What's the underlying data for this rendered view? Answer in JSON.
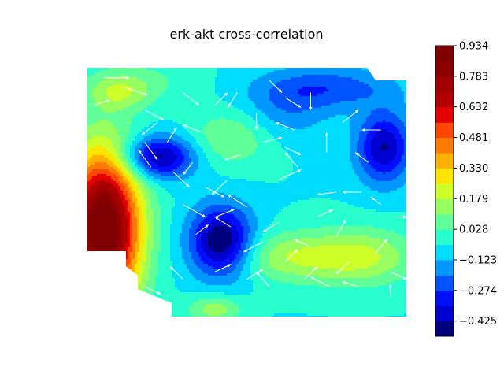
{
  "chart_data": {
    "type": "heatmap",
    "subtype": "filled-contour with quiver arrows",
    "title": "erk-akt cross-correlation",
    "colormap": "jet",
    "colorbar": {
      "vmin": -0.5,
      "vmax": 0.934,
      "levels": [
        -0.5,
        -0.425,
        -0.349,
        -0.274,
        -0.199,
        -0.123,
        -0.048,
        0.028,
        0.103,
        0.179,
        0.254,
        0.33,
        0.405,
        0.481,
        0.556,
        0.632,
        0.707,
        0.783,
        0.858,
        0.934
      ],
      "tick_labels": [
        "0.934",
        "0.783",
        "0.632",
        "0.481",
        "0.330",
        "0.179",
        "0.028",
        "−0.123",
        "−0.274",
        "−0.425"
      ],
      "tick_values": [
        0.934,
        0.783,
        0.632,
        0.481,
        0.33,
        0.179,
        0.028,
        -0.123,
        -0.274,
        -0.425
      ],
      "band_colors": [
        "#00007f",
        "#0000d0",
        "#0010ff",
        "#0054ff",
        "#0098ff",
        "#00dcfe",
        "#29ffce",
        "#60ff97",
        "#97ff60",
        "#ceff29",
        "#fee500",
        "#ffb000",
        "#ff7a00",
        "#ff4600",
        "#e40000",
        "#b00000",
        "#a00000",
        "#8a0000",
        "#7f0000"
      ]
    },
    "field": {
      "background": -0.05,
      "features": [
        {
          "x": 0.05,
          "y": 0.35,
          "sx": 0.08,
          "sy": 0.22,
          "amp": 1.05
        },
        {
          "x": 0.22,
          "y": 0.64,
          "sx": 0.08,
          "sy": 0.06,
          "amp": -0.42
        },
        {
          "x": 0.42,
          "y": 0.3,
          "sx": 0.07,
          "sy": 0.1,
          "amp": -0.48
        },
        {
          "x": 0.45,
          "y": 0.72,
          "sx": 0.09,
          "sy": 0.08,
          "amp": 0.16
        },
        {
          "x": 0.62,
          "y": 0.24,
          "sx": 0.13,
          "sy": 0.07,
          "amp": 0.2
        },
        {
          "x": 0.86,
          "y": 0.24,
          "sx": 0.12,
          "sy": 0.08,
          "amp": 0.24
        },
        {
          "x": 0.93,
          "y": 0.68,
          "sx": 0.06,
          "sy": 0.1,
          "amp": -0.38
        },
        {
          "x": 0.75,
          "y": 0.92,
          "sx": 0.15,
          "sy": 0.06,
          "amp": -0.2
        },
        {
          "x": 0.62,
          "y": 0.82,
          "sx": 0.1,
          "sy": 0.08,
          "amp": -0.12
        },
        {
          "x": 0.18,
          "y": 0.95,
          "sx": 0.12,
          "sy": 0.06,
          "amp": 0.08
        },
        {
          "x": 0.4,
          "y": 0.03,
          "sx": 0.06,
          "sy": 0.04,
          "amp": 0.2
        },
        {
          "x": 0.1,
          "y": 0.9,
          "sx": 0.07,
          "sy": 0.05,
          "amp": 0.18
        }
      ]
    },
    "quiver": [
      {
        "x": 0.05,
        "y": 0.96,
        "dx": 0.08,
        "dy": 0.0
      },
      {
        "x": 0.12,
        "y": 0.92,
        "dx": 0.07,
        "dy": -0.03
      },
      {
        "x": 0.02,
        "y": 0.85,
        "dx": 0.05,
        "dy": 0.02
      },
      {
        "x": 0.18,
        "y": 0.83,
        "dx": 0.06,
        "dy": -0.04
      },
      {
        "x": 0.22,
        "y": 0.78,
        "dx": -0.05,
        "dy": -0.05
      },
      {
        "x": 0.25,
        "y": 0.7,
        "dx": 0.03,
        "dy": 0.06
      },
      {
        "x": 0.2,
        "y": 0.6,
        "dx": -0.04,
        "dy": 0.07
      },
      {
        "x": 0.27,
        "y": 0.58,
        "dx": 0.05,
        "dy": -0.06
      },
      {
        "x": 0.33,
        "y": 0.62,
        "dx": -0.03,
        "dy": -0.05
      },
      {
        "x": 0.37,
        "y": 0.52,
        "dx": 0.06,
        "dy": -0.04
      },
      {
        "x": 0.3,
        "y": 0.45,
        "dx": 0.07,
        "dy": -0.05
      },
      {
        "x": 0.4,
        "y": 0.4,
        "dx": 0.06,
        "dy": 0.03
      },
      {
        "x": 0.45,
        "y": 0.36,
        "dx": -0.05,
        "dy": 0.04
      },
      {
        "x": 0.5,
        "y": 0.44,
        "dx": -0.06,
        "dy": 0.05
      },
      {
        "x": 0.34,
        "y": 0.33,
        "dx": 0.04,
        "dy": 0.04
      },
      {
        "x": 0.4,
        "y": 0.85,
        "dx": 0.04,
        "dy": 0.05
      },
      {
        "x": 0.47,
        "y": 0.9,
        "dx": -0.03,
        "dy": -0.06
      },
      {
        "x": 0.53,
        "y": 0.82,
        "dx": 0.0,
        "dy": -0.07
      },
      {
        "x": 0.48,
        "y": 0.65,
        "dx": -0.05,
        "dy": -0.02
      },
      {
        "x": 0.57,
        "y": 0.95,
        "dx": 0.04,
        "dy": -0.05
      },
      {
        "x": 0.62,
        "y": 0.88,
        "dx": 0.05,
        "dy": -0.04
      },
      {
        "x": 0.7,
        "y": 0.9,
        "dx": 0.0,
        "dy": -0.07
      },
      {
        "x": 0.62,
        "y": 0.68,
        "dx": 0.05,
        "dy": -0.03
      },
      {
        "x": 0.6,
        "y": 0.55,
        "dx": 0.07,
        "dy": 0.04
      },
      {
        "x": 0.66,
        "y": 0.6,
        "dx": -0.04,
        "dy": 0.06
      },
      {
        "x": 0.75,
        "y": 0.66,
        "dx": 0.0,
        "dy": 0.08
      },
      {
        "x": 0.88,
        "y": 0.62,
        "dx": -0.04,
        "dy": 0.04
      },
      {
        "x": 0.78,
        "y": 0.5,
        "dx": -0.06,
        "dy": -0.01
      },
      {
        "x": 0.86,
        "y": 0.5,
        "dx": -0.06,
        "dy": 0.0
      },
      {
        "x": 0.92,
        "y": 0.45,
        "dx": -0.03,
        "dy": 0.03
      },
      {
        "x": 0.97,
        "y": 0.4,
        "dx": 0.03,
        "dy": 0.0
      },
      {
        "x": 0.6,
        "y": 0.38,
        "dx": -0.05,
        "dy": -0.04
      },
      {
        "x": 0.55,
        "y": 0.3,
        "dx": -0.06,
        "dy": -0.04
      },
      {
        "x": 0.62,
        "y": 0.22,
        "dx": 0.04,
        "dy": 0.05
      },
      {
        "x": 0.7,
        "y": 0.28,
        "dx": -0.05,
        "dy": 0.03
      },
      {
        "x": 0.78,
        "y": 0.32,
        "dx": 0.03,
        "dy": 0.07
      },
      {
        "x": 0.82,
        "y": 0.22,
        "dx": -0.04,
        "dy": -0.05
      },
      {
        "x": 0.9,
        "y": 0.25,
        "dx": 0.04,
        "dy": 0.06
      },
      {
        "x": 0.95,
        "y": 0.18,
        "dx": 0.05,
        "dy": -0.03
      },
      {
        "x": 0.85,
        "y": 0.12,
        "dx": -0.05,
        "dy": 0.02
      },
      {
        "x": 0.76,
        "y": 0.12,
        "dx": -0.06,
        "dy": 0.04
      },
      {
        "x": 0.68,
        "y": 0.15,
        "dx": 0.04,
        "dy": 0.05
      },
      {
        "x": 0.57,
        "y": 0.12,
        "dx": -0.04,
        "dy": 0.06
      },
      {
        "x": 0.5,
        "y": 0.15,
        "dx": 0.05,
        "dy": 0.04
      },
      {
        "x": 0.4,
        "y": 0.18,
        "dx": 0.05,
        "dy": 0.03
      },
      {
        "x": 0.3,
        "y": 0.15,
        "dx": -0.04,
        "dy": 0.05
      },
      {
        "x": 0.18,
        "y": 0.12,
        "dx": 0.05,
        "dy": -0.03
      },
      {
        "x": 0.08,
        "y": 0.1,
        "dx": -0.04,
        "dy": 0.04
      },
      {
        "x": 0.95,
        "y": 0.08,
        "dx": 0.0,
        "dy": 0.05
      },
      {
        "x": 0.65,
        "y": 0.75,
        "dx": -0.06,
        "dy": 0.03
      },
      {
        "x": 0.8,
        "y": 0.78,
        "dx": 0.05,
        "dy": 0.05
      },
      {
        "x": 0.3,
        "y": 0.9,
        "dx": 0.05,
        "dy": -0.05
      },
      {
        "x": 0.18,
        "y": 0.7,
        "dx": 0.04,
        "dy": -0.07
      },
      {
        "x": 0.36,
        "y": 0.74,
        "dx": -0.06,
        "dy": 0.03
      },
      {
        "x": 0.55,
        "y": 0.7,
        "dx": 0.06,
        "dy": 0.02
      },
      {
        "x": 0.44,
        "y": 0.55,
        "dx": -0.05,
        "dy": -0.06
      },
      {
        "x": 0.72,
        "y": 0.4,
        "dx": 0.05,
        "dy": 0.03
      },
      {
        "x": 0.92,
        "y": 0.75,
        "dx": -0.06,
        "dy": 0.0
      }
    ]
  }
}
